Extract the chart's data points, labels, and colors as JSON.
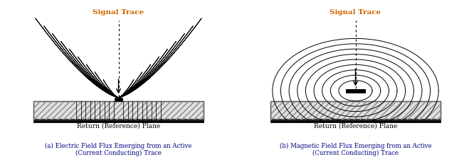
{
  "fig_width": 6.66,
  "fig_height": 2.29,
  "bg_color": "#ffffff",
  "title_a": "Signal Trace",
  "title_b": "Signal Trace",
  "label_a": "(a) Electric Field Flux Emerging from an Active\n(Current Conducting) Trace",
  "label_b": "(b) Magnetic Field Flux Emerging from an Active\n(Current Conducting) Trace",
  "ref_plane_label": "Return (Reference) Plane",
  "title_color": "#cc6600",
  "label_color": "#000080",
  "line_color": "#000000",
  "plane_fill": "#e0e0e0",
  "num_arcs_a": 9,
  "num_arcs_b": 9
}
